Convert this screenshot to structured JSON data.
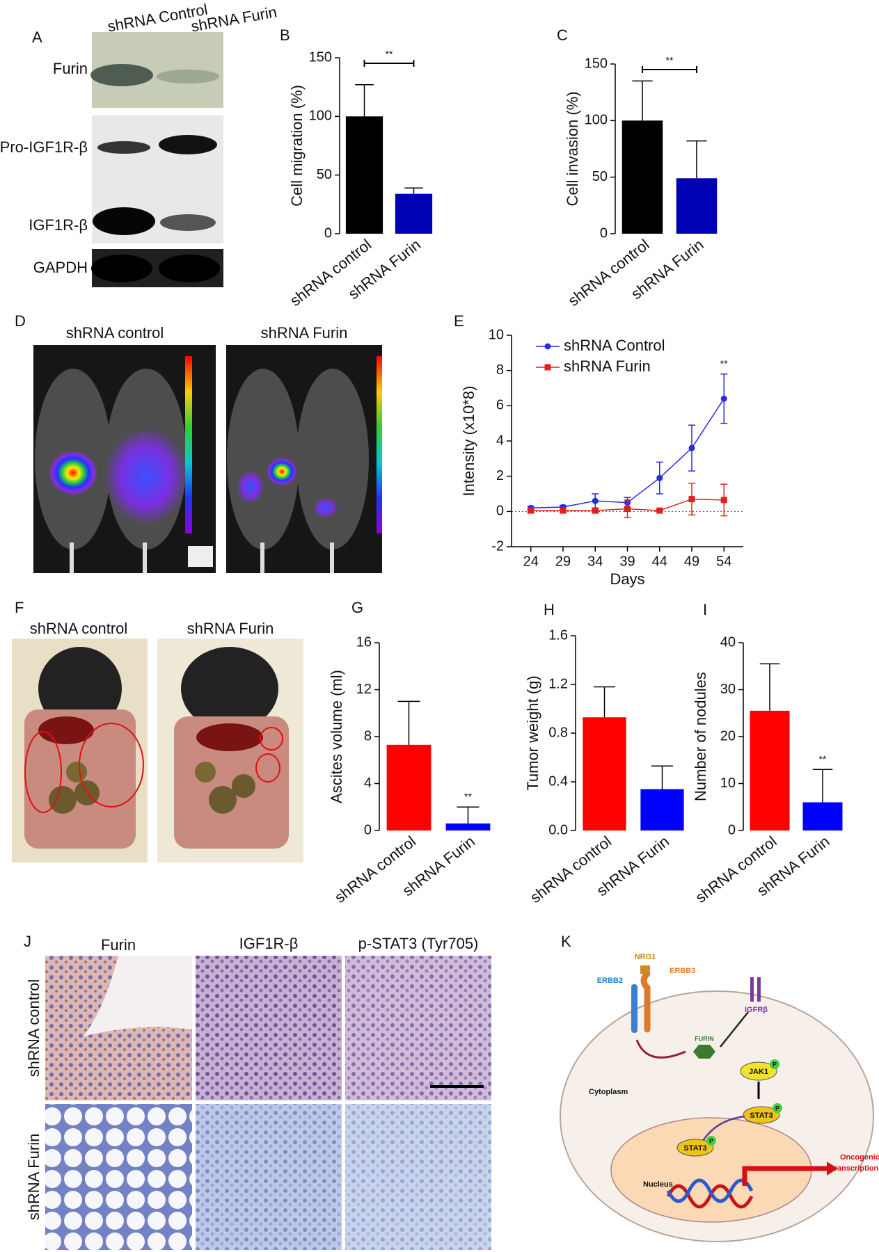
{
  "panels": {
    "A": {
      "label": "A",
      "lanes": [
        "shRNA Control",
        "shRNA Furin"
      ],
      "bands": [
        "Furin",
        "Pro-IGF1R-β",
        "IGF1R-β",
        "GAPDH"
      ]
    },
    "D": {
      "label": "D",
      "titles": [
        "shRNA control",
        "shRNA Furin"
      ]
    },
    "F": {
      "label": "F",
      "titles": [
        "shRNA control",
        "shRNA Furin"
      ]
    },
    "J": {
      "label": "J",
      "columns": [
        "Furin",
        "IGF1R-β",
        "p-STAT3 (Tyr705)"
      ],
      "rows": [
        "shRNA control",
        "shRNA Furin"
      ]
    },
    "K": {
      "label": "K",
      "nodes": {
        "nrg1": "NRG1",
        "erbb2": "ERBB2",
        "erbb3": "ERBB3",
        "igfr": "IGFRβ",
        "furin": "FURIN",
        "jak1": "JAK1",
        "stat3": "STAT3",
        "cytoplasm": "Cytoplasm",
        "stat3_nuclear": "STAT3",
        "nucleus": "Nucleus",
        "oncogenic": [
          "Oncogenic",
          "transcription"
        ],
        "phospho": "P"
      }
    }
  },
  "chart_data": [
    {
      "type": "bar",
      "label": "B",
      "ylabel": "Cell migration (%)",
      "categories": [
        "shRNA control",
        "shRNA Furin"
      ],
      "values": [
        100,
        34
      ],
      "errors": [
        27,
        5
      ],
      "colors": [
        "#000000",
        "#0000b4"
      ],
      "ylim": [
        0,
        150
      ],
      "yticks": [
        0,
        50,
        100,
        150
      ],
      "annotation": {
        "text": "**",
        "bracket": [
          "shRNA control",
          "shRNA Furin"
        ]
      }
    },
    {
      "type": "bar",
      "label": "C",
      "ylabel": "Cell invasion (%)",
      "categories": [
        "shRNA control",
        "shRNA Furin"
      ],
      "values": [
        100,
        49
      ],
      "errors": [
        35,
        33
      ],
      "colors": [
        "#000000",
        "#0000b4"
      ],
      "ylim": [
        0,
        150
      ],
      "yticks": [
        0,
        50,
        100,
        150
      ],
      "annotation": {
        "text": "**",
        "bracket": [
          "shRNA control",
          "shRNA Furin"
        ]
      }
    },
    {
      "type": "line",
      "label": "E",
      "xlabel": "Days",
      "ylabel": "Intensity (x10*8)",
      "x": [
        24,
        29,
        34,
        39,
        44,
        49,
        54
      ],
      "xlim": [
        21,
        57
      ],
      "xticks": [
        24,
        29,
        34,
        39,
        44,
        49,
        54
      ],
      "ylim": [
        -2,
        10
      ],
      "yticks": [
        -2,
        0,
        2,
        4,
        6,
        8,
        10
      ],
      "zero_line": true,
      "legend": "upper left",
      "series": [
        {
          "name": "shRNA Control",
          "color": "#2a2ae0",
          "marker": "circle",
          "values": [
            0.2,
            0.25,
            0.6,
            0.5,
            1.9,
            3.6,
            6.4
          ],
          "errors": [
            0.1,
            0.1,
            0.4,
            0.3,
            0.9,
            1.3,
            1.4
          ]
        },
        {
          "name": "shRNA Furin",
          "color": "#e0201e",
          "marker": "square",
          "values": [
            0.05,
            0.05,
            0.05,
            0.15,
            0.05,
            0.7,
            0.65
          ],
          "errors": [
            0.1,
            0.1,
            0.1,
            0.5,
            0.05,
            0.9,
            0.9
          ]
        }
      ],
      "annotation": {
        "text": "**",
        "x": 54
      }
    },
    {
      "type": "bar",
      "label": "G",
      "ylabel": "Ascites volume (ml)",
      "categories": [
        "shRNA control",
        "shRNA Furin"
      ],
      "values": [
        7.3,
        0.6
      ],
      "errors": [
        3.7,
        1.4
      ],
      "colors": [
        "#ff0000",
        "#0000ff"
      ],
      "ylim": [
        0,
        16
      ],
      "yticks": [
        0,
        4,
        8,
        12,
        16
      ],
      "annotation": {
        "text": "**",
        "category": "shRNA Furin"
      }
    },
    {
      "type": "bar",
      "label": "H",
      "ylabel": "Tumor weight (g)",
      "categories": [
        "shRNA control",
        "shRNA Furin"
      ],
      "values": [
        0.93,
        0.34
      ],
      "errors": [
        0.25,
        0.19
      ],
      "colors": [
        "#ff0000",
        "#0000ff"
      ],
      "ylim": [
        0,
        1.6
      ],
      "yticks": [
        {
          "value": 0,
          "label": "0.0"
        },
        0.4,
        0.8,
        1.2,
        1.6
      ]
    },
    {
      "type": "bar",
      "label": "I",
      "ylabel": "Number of nodules",
      "categories": [
        "shRNA control",
        "shRNA Furin"
      ],
      "values": [
        25.5,
        6
      ],
      "errors": [
        10,
        7
      ],
      "colors": [
        "#ff0000",
        "#0000ff"
      ],
      "ylim": [
        0,
        40
      ],
      "yticks": [
        0,
        10,
        20,
        30,
        40
      ],
      "annotation": {
        "text": "**",
        "category": "shRNA Furin"
      }
    }
  ]
}
